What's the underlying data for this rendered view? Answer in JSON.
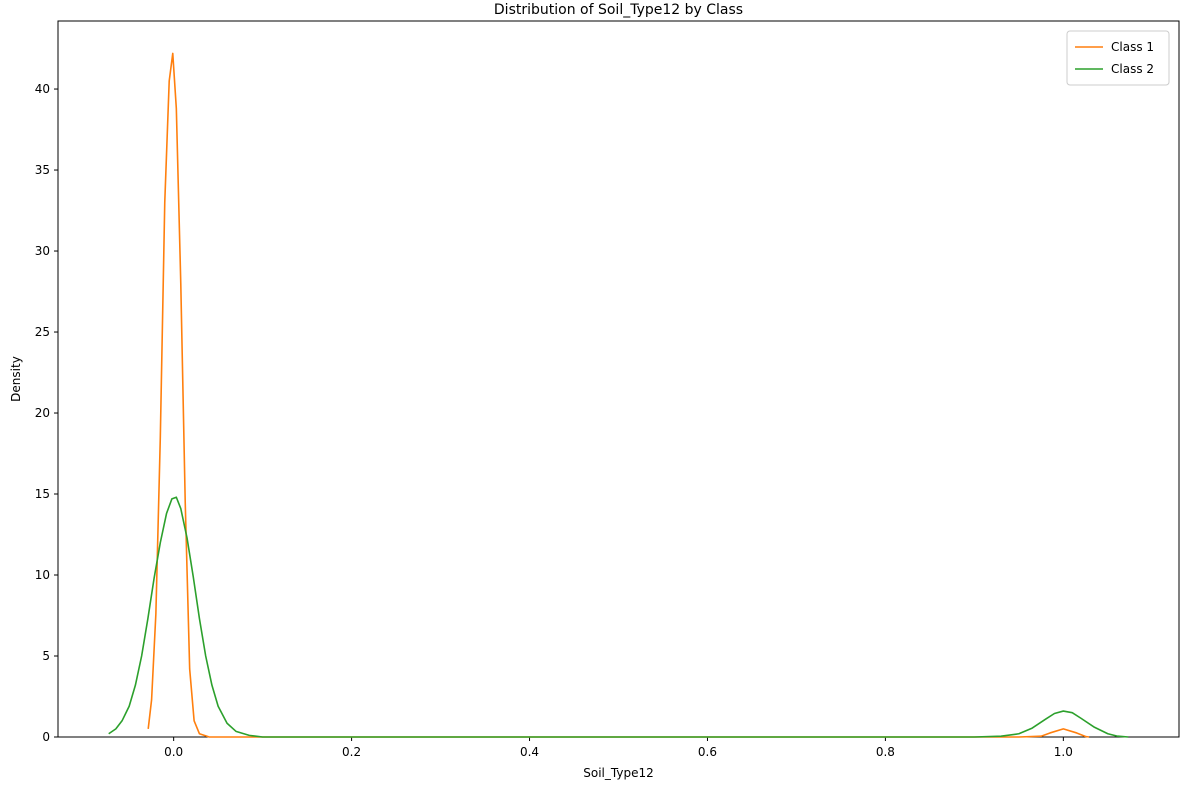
{
  "chart_data": {
    "type": "line",
    "title": "Distribution of Soil_Type12 by Class",
    "xlabel": "Soil_Type12",
    "ylabel": "Density",
    "xlim": [
      -0.13,
      1.13
    ],
    "ylim": [
      0,
      44.2
    ],
    "x_ticks": [
      0.0,
      0.2,
      0.4,
      0.6,
      0.8,
      1.0
    ],
    "x_tick_labels": [
      "0.0",
      "0.2",
      "0.4",
      "0.6",
      "0.8",
      "1.0"
    ],
    "y_ticks": [
      0,
      5,
      10,
      15,
      20,
      25,
      30,
      35,
      40
    ],
    "y_tick_labels": [
      "0",
      "5",
      "10",
      "15",
      "20",
      "25",
      "30",
      "35",
      "40"
    ],
    "grid": false,
    "legend_position": "top-right",
    "series": [
      {
        "name": "Class 1",
        "color": "#ff7f0e",
        "points": [
          [
            -0.0286,
            0.5
          ],
          [
            -0.0248,
            2.3
          ],
          [
            -0.02,
            7.6
          ],
          [
            -0.015,
            18.5
          ],
          [
            -0.01,
            33.0
          ],
          [
            -0.005,
            40.5
          ],
          [
            -0.001,
            42.2
          ],
          [
            0.003,
            38.8
          ],
          [
            0.008,
            28.0
          ],
          [
            0.013,
            14.5
          ],
          [
            0.018,
            4.2
          ],
          [
            0.023,
            1.0
          ],
          [
            0.029,
            0.2
          ],
          [
            0.04,
            0.0
          ],
          [
            0.08,
            0.0
          ],
          [
            0.2,
            0.0
          ],
          [
            0.5,
            0.0
          ],
          [
            0.8,
            0.0
          ],
          [
            0.95,
            0.0
          ],
          [
            0.975,
            0.05
          ],
          [
            0.985,
            0.25
          ],
          [
            1.0,
            0.5
          ],
          [
            1.015,
            0.25
          ],
          [
            1.025,
            0.03
          ],
          [
            1.029,
            0.0
          ]
        ]
      },
      {
        "name": "Class 2",
        "color": "#2ca02c",
        "points": [
          [
            -0.073,
            0.2
          ],
          [
            -0.065,
            0.5
          ],
          [
            -0.058,
            1.0
          ],
          [
            -0.05,
            1.9
          ],
          [
            -0.043,
            3.2
          ],
          [
            -0.036,
            5.0
          ],
          [
            -0.029,
            7.3
          ],
          [
            -0.022,
            9.8
          ],
          [
            -0.015,
            12.0
          ],
          [
            -0.008,
            13.8
          ],
          [
            -0.002,
            14.7
          ],
          [
            0.003,
            14.8
          ],
          [
            0.008,
            14.1
          ],
          [
            0.015,
            12.3
          ],
          [
            0.022,
            9.9
          ],
          [
            0.029,
            7.3
          ],
          [
            0.036,
            5.0
          ],
          [
            0.043,
            3.2
          ],
          [
            0.05,
            1.9
          ],
          [
            0.06,
            0.85
          ],
          [
            0.07,
            0.35
          ],
          [
            0.085,
            0.1
          ],
          [
            0.1,
            0.0
          ],
          [
            0.3,
            0.0
          ],
          [
            0.6,
            0.0
          ],
          [
            0.9,
            0.0
          ],
          [
            0.93,
            0.05
          ],
          [
            0.95,
            0.2
          ],
          [
            0.965,
            0.55
          ],
          [
            0.98,
            1.1
          ],
          [
            0.99,
            1.45
          ],
          [
            1.0,
            1.6
          ],
          [
            1.01,
            1.5
          ],
          [
            1.02,
            1.15
          ],
          [
            1.035,
            0.6
          ],
          [
            1.05,
            0.2
          ],
          [
            1.06,
            0.06
          ],
          [
            1.073,
            0.0
          ]
        ]
      }
    ]
  }
}
